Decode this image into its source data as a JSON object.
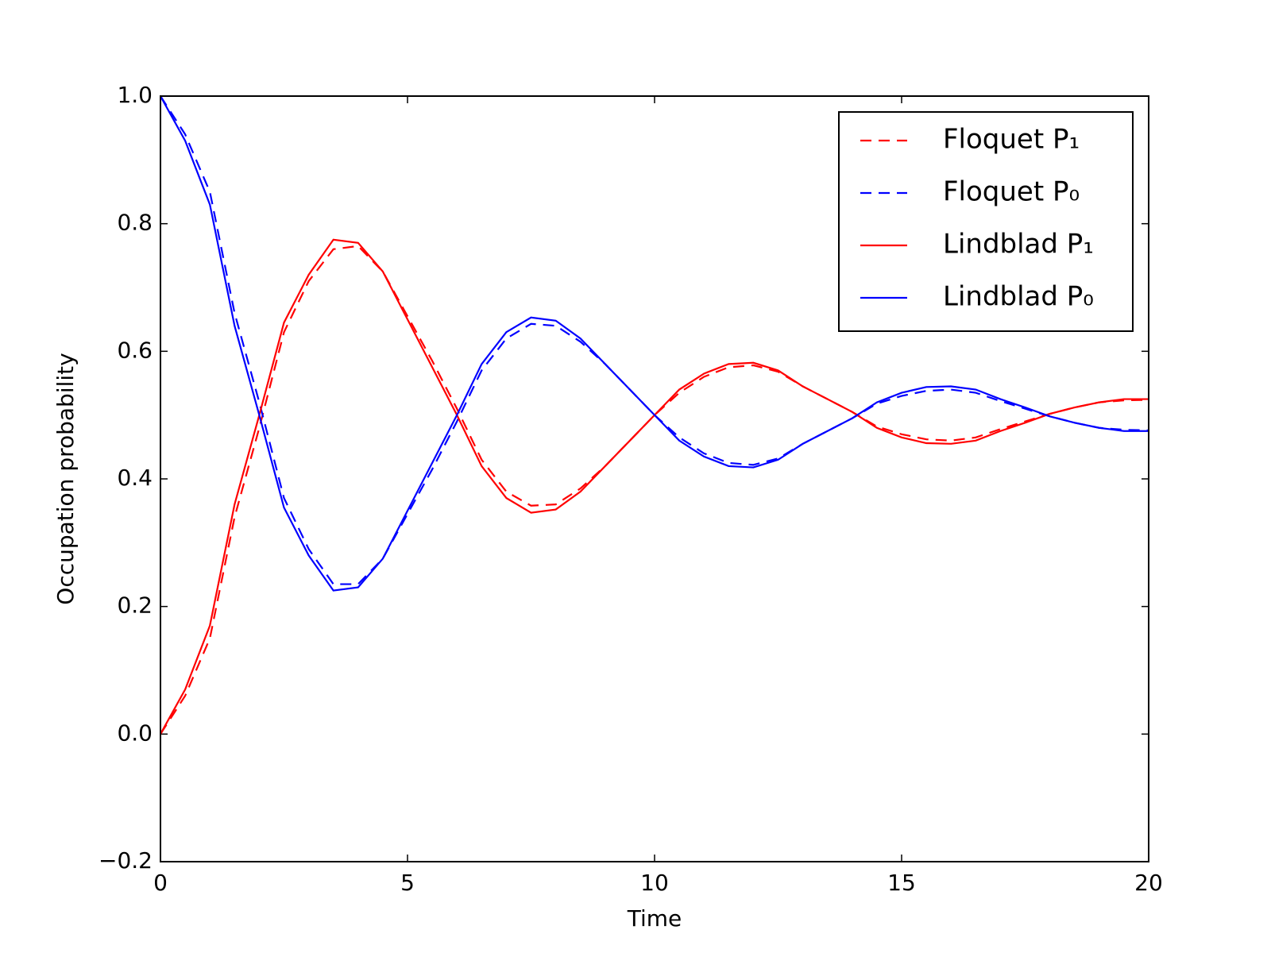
{
  "chart_data": {
    "type": "line",
    "xlabel": "Time",
    "ylabel": "Occupation probability",
    "x": [
      0,
      0.5,
      1,
      1.5,
      2,
      2.5,
      3,
      3.5,
      4,
      4.5,
      5,
      5.5,
      6,
      6.5,
      7,
      7.5,
      8,
      8.5,
      9,
      9.5,
      10,
      10.5,
      11,
      11.5,
      12,
      12.5,
      13,
      13.5,
      14,
      14.5,
      15,
      15.5,
      16,
      16.5,
      17,
      17.5,
      18,
      18.5,
      19,
      19.5,
      20
    ],
    "series": [
      {
        "name": "Floquet P₁",
        "color": "#ff0000",
        "linestyle": "dashed",
        "values": [
          0,
          0.06,
          0.15,
          0.34,
          0.48,
          0.63,
          0.71,
          0.76,
          0.765,
          0.725,
          0.655,
          0.585,
          0.51,
          0.43,
          0.38,
          0.358,
          0.36,
          0.385,
          0.42,
          0.46,
          0.5,
          0.535,
          0.56,
          0.575,
          0.578,
          0.568,
          0.545,
          0.525,
          0.505,
          0.482,
          0.47,
          0.462,
          0.46,
          0.465,
          0.478,
          0.49,
          0.502,
          0.512,
          0.52,
          0.523,
          0.524
        ]
      },
      {
        "name": "Floquet P₀",
        "color": "#0000ff",
        "linestyle": "dashed",
        "values": [
          1,
          0.94,
          0.85,
          0.66,
          0.52,
          0.37,
          0.29,
          0.235,
          0.235,
          0.275,
          0.345,
          0.415,
          0.49,
          0.57,
          0.62,
          0.643,
          0.64,
          0.615,
          0.58,
          0.54,
          0.5,
          0.465,
          0.44,
          0.425,
          0.422,
          0.432,
          0.455,
          0.475,
          0.495,
          0.518,
          0.53,
          0.538,
          0.54,
          0.535,
          0.522,
          0.51,
          0.498,
          0.488,
          0.48,
          0.477,
          0.476
        ]
      },
      {
        "name": "Lindblad P₁",
        "color": "#ff0000",
        "linestyle": "solid",
        "values": [
          0,
          0.07,
          0.17,
          0.36,
          0.5,
          0.645,
          0.72,
          0.775,
          0.77,
          0.725,
          0.65,
          0.575,
          0.5,
          0.42,
          0.37,
          0.347,
          0.352,
          0.38,
          0.42,
          0.46,
          0.5,
          0.54,
          0.565,
          0.58,
          0.582,
          0.57,
          0.545,
          0.525,
          0.505,
          0.48,
          0.465,
          0.456,
          0.455,
          0.46,
          0.475,
          0.488,
          0.502,
          0.512,
          0.52,
          0.525,
          0.525
        ]
      },
      {
        "name": "Lindblad P₀",
        "color": "#0000ff",
        "linestyle": "solid",
        "values": [
          1,
          0.93,
          0.83,
          0.64,
          0.5,
          0.355,
          0.28,
          0.225,
          0.23,
          0.275,
          0.35,
          0.425,
          0.5,
          0.58,
          0.63,
          0.653,
          0.648,
          0.62,
          0.58,
          0.54,
          0.5,
          0.46,
          0.435,
          0.42,
          0.418,
          0.43,
          0.455,
          0.475,
          0.495,
          0.52,
          0.535,
          0.544,
          0.545,
          0.54,
          0.525,
          0.512,
          0.498,
          0.488,
          0.48,
          0.475,
          0.475
        ]
      }
    ],
    "xlim": [
      0,
      20
    ],
    "xticks": [
      0,
      5,
      10,
      15,
      20
    ],
    "ylim": [
      -0.2,
      1.0
    ],
    "yticks": [
      {
        "value": -0.2,
        "label": "−0.2"
      },
      {
        "value": 0,
        "label": "0.0"
      },
      0.2,
      0.4,
      0.6,
      0.8,
      {
        "value": 1.0,
        "label": "1.0"
      }
    ],
    "grid": false,
    "legend": "upper right"
  }
}
